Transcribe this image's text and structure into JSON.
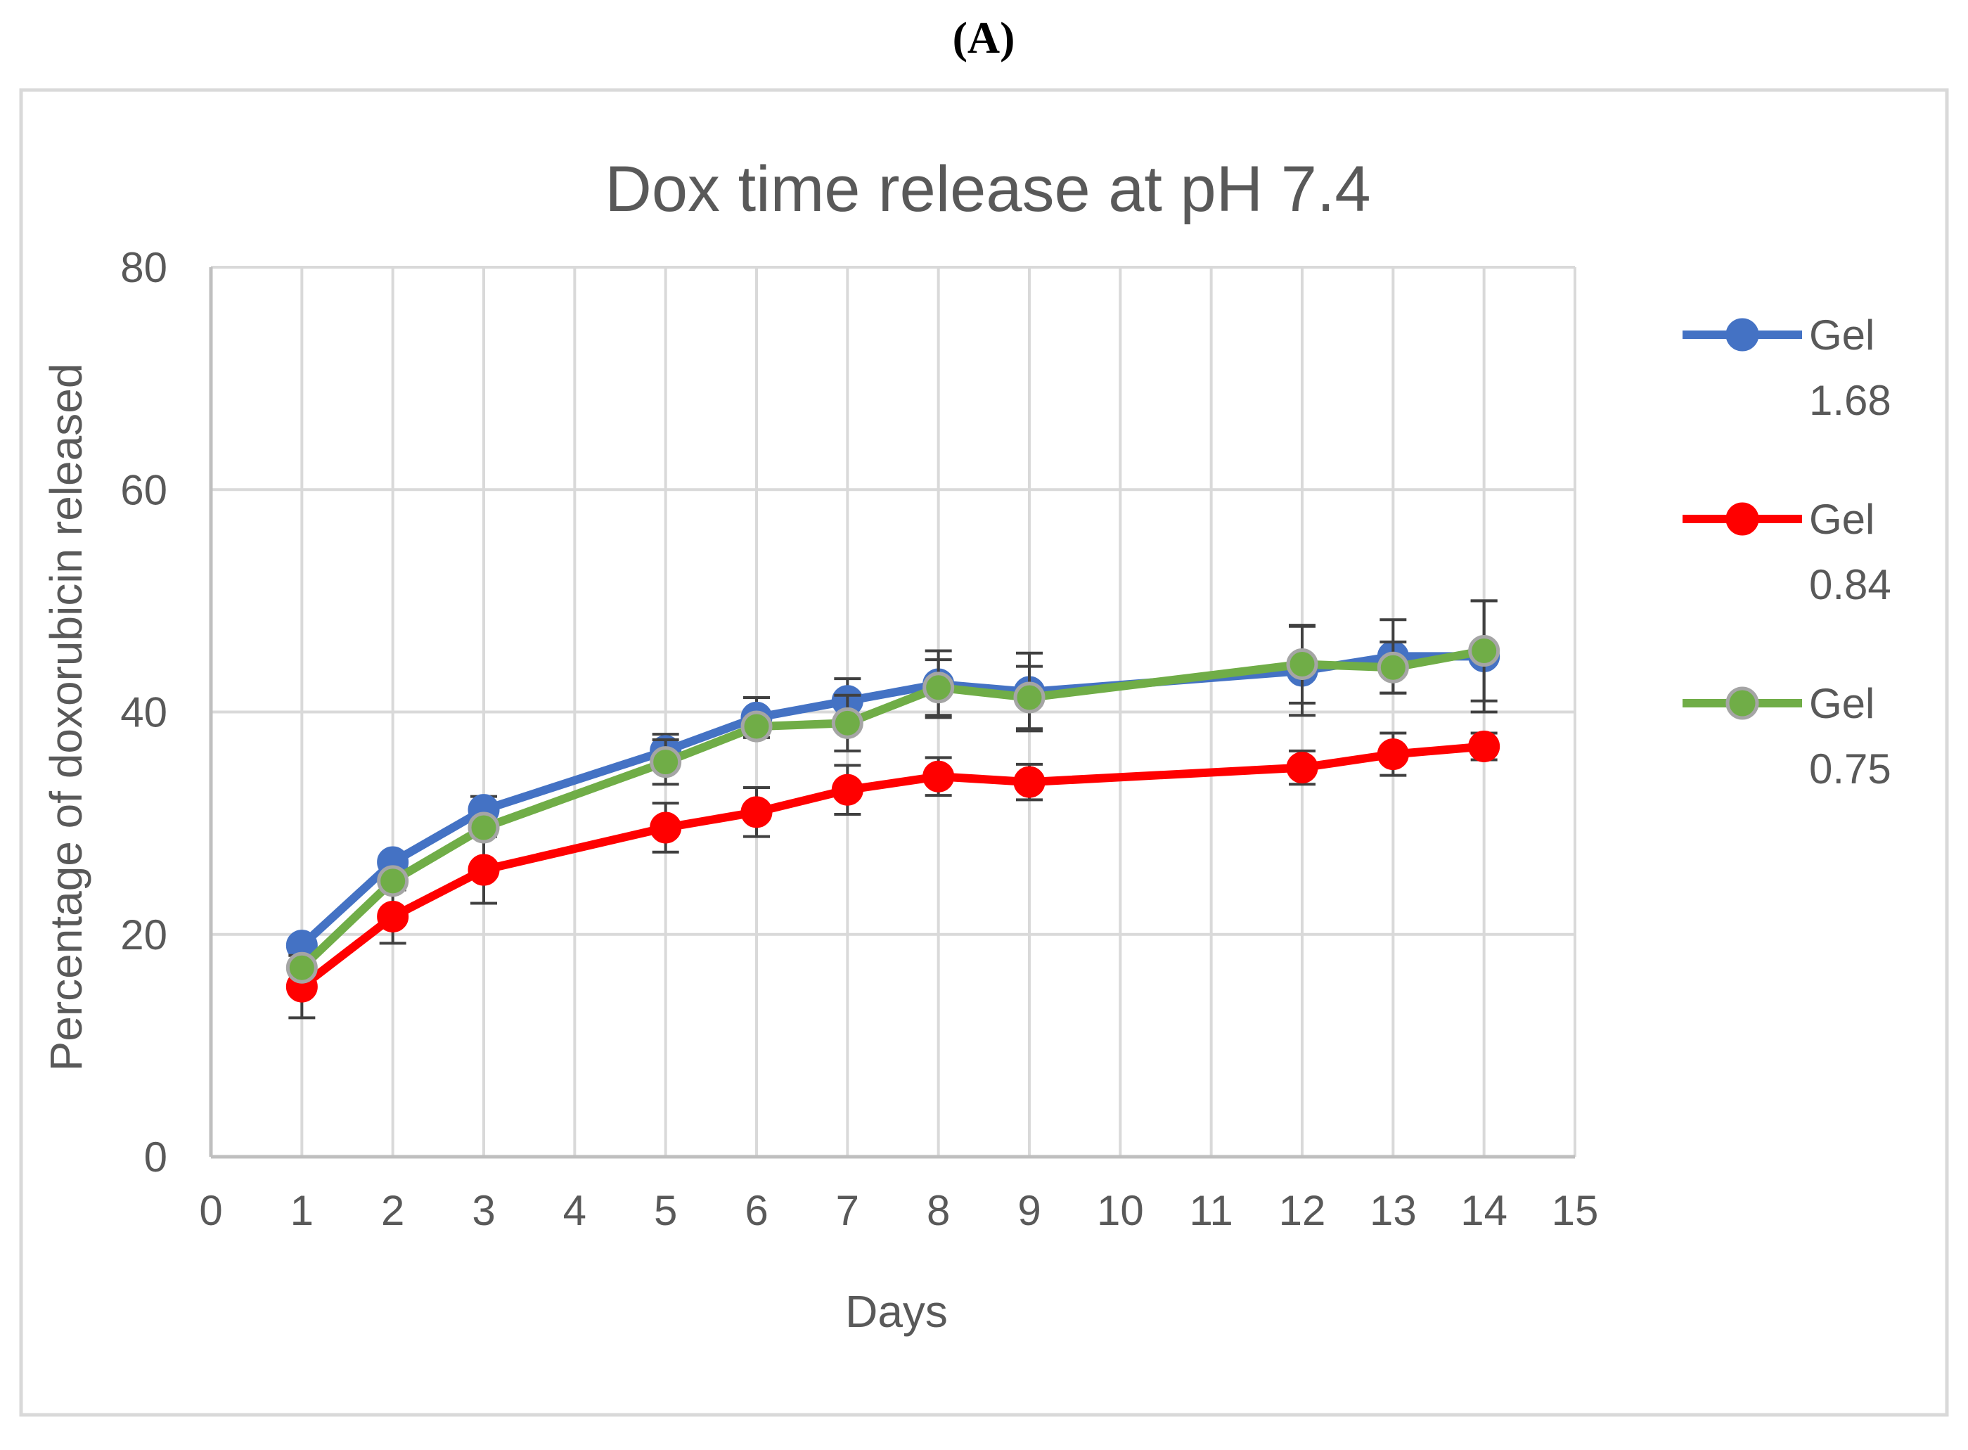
{
  "panel_label": "(A)",
  "colors": {
    "gel_168": "#4472C4",
    "gel_084": "#FF0000",
    "gel_075_line": "#70AD47",
    "gel_075_marker_edge": "#A5A5A5",
    "grid": "#D9D9D9",
    "axis": "#BFBFBF",
    "error_bar": "#404040",
    "text": "#595959"
  },
  "chart_data": {
    "type": "line",
    "title": "Dox time release at pH 7.4",
    "xlabel": "Days",
    "ylabel": "Percentage of doxorubicin released",
    "xlim": [
      0,
      15
    ],
    "ylim": [
      0,
      80
    ],
    "x_ticks": [
      "0",
      "1",
      "2",
      "3",
      "4",
      "5",
      "6",
      "7",
      "8",
      "9",
      "10",
      "11",
      "12",
      "13",
      "14",
      "15"
    ],
    "y_ticks": [
      "0",
      "20",
      "40",
      "60",
      "80"
    ],
    "grid": true,
    "legend_position": "right",
    "series": [
      {
        "name": "Gel 1.68",
        "legend_lines": [
          "Gel",
          "1.68"
        ],
        "color_key": "gel_168",
        "x": [
          1,
          2,
          3,
          5,
          6,
          7,
          8,
          9,
          12,
          13,
          14
        ],
        "values": [
          19.0,
          26.5,
          31.2,
          36.5,
          39.5,
          41.0,
          42.5,
          41.8,
          43.7,
          45.0,
          45.0
        ],
        "errors": [
          0.0,
          0.0,
          1.2,
          1.5,
          1.8,
          2.0,
          3.0,
          3.5,
          4.0,
          3.3,
          5.0
        ]
      },
      {
        "name": "Gel 0.84",
        "legend_lines": [
          "Gel",
          "0.84"
        ],
        "color_key": "gel_084",
        "x": [
          1,
          2,
          3,
          5,
          6,
          7,
          8,
          9,
          12,
          13,
          14
        ],
        "values": [
          15.3,
          21.6,
          25.8,
          29.6,
          31.0,
          33.0,
          34.2,
          33.7,
          35.0,
          36.2,
          36.9
        ],
        "errors": [
          2.8,
          2.4,
          3.0,
          2.2,
          2.2,
          2.2,
          1.7,
          1.6,
          1.5,
          1.9,
          1.2
        ]
      },
      {
        "name": "Gel 0.75",
        "legend_lines": [
          "Gel",
          "0.75"
        ],
        "color_key": "gel_075_line",
        "marker_color_key": "gel_075_marker_edge",
        "x": [
          1,
          2,
          3,
          5,
          6,
          7,
          8,
          9,
          12,
          13,
          14
        ],
        "values": [
          17.0,
          24.8,
          29.6,
          35.5,
          38.7,
          39.0,
          42.2,
          41.3,
          44.3,
          44.0,
          45.5
        ],
        "errors": [
          0.0,
          0.0,
          0.0,
          2.0,
          0.0,
          2.5,
          2.5,
          2.8,
          3.5,
          2.3,
          4.5
        ]
      }
    ]
  }
}
